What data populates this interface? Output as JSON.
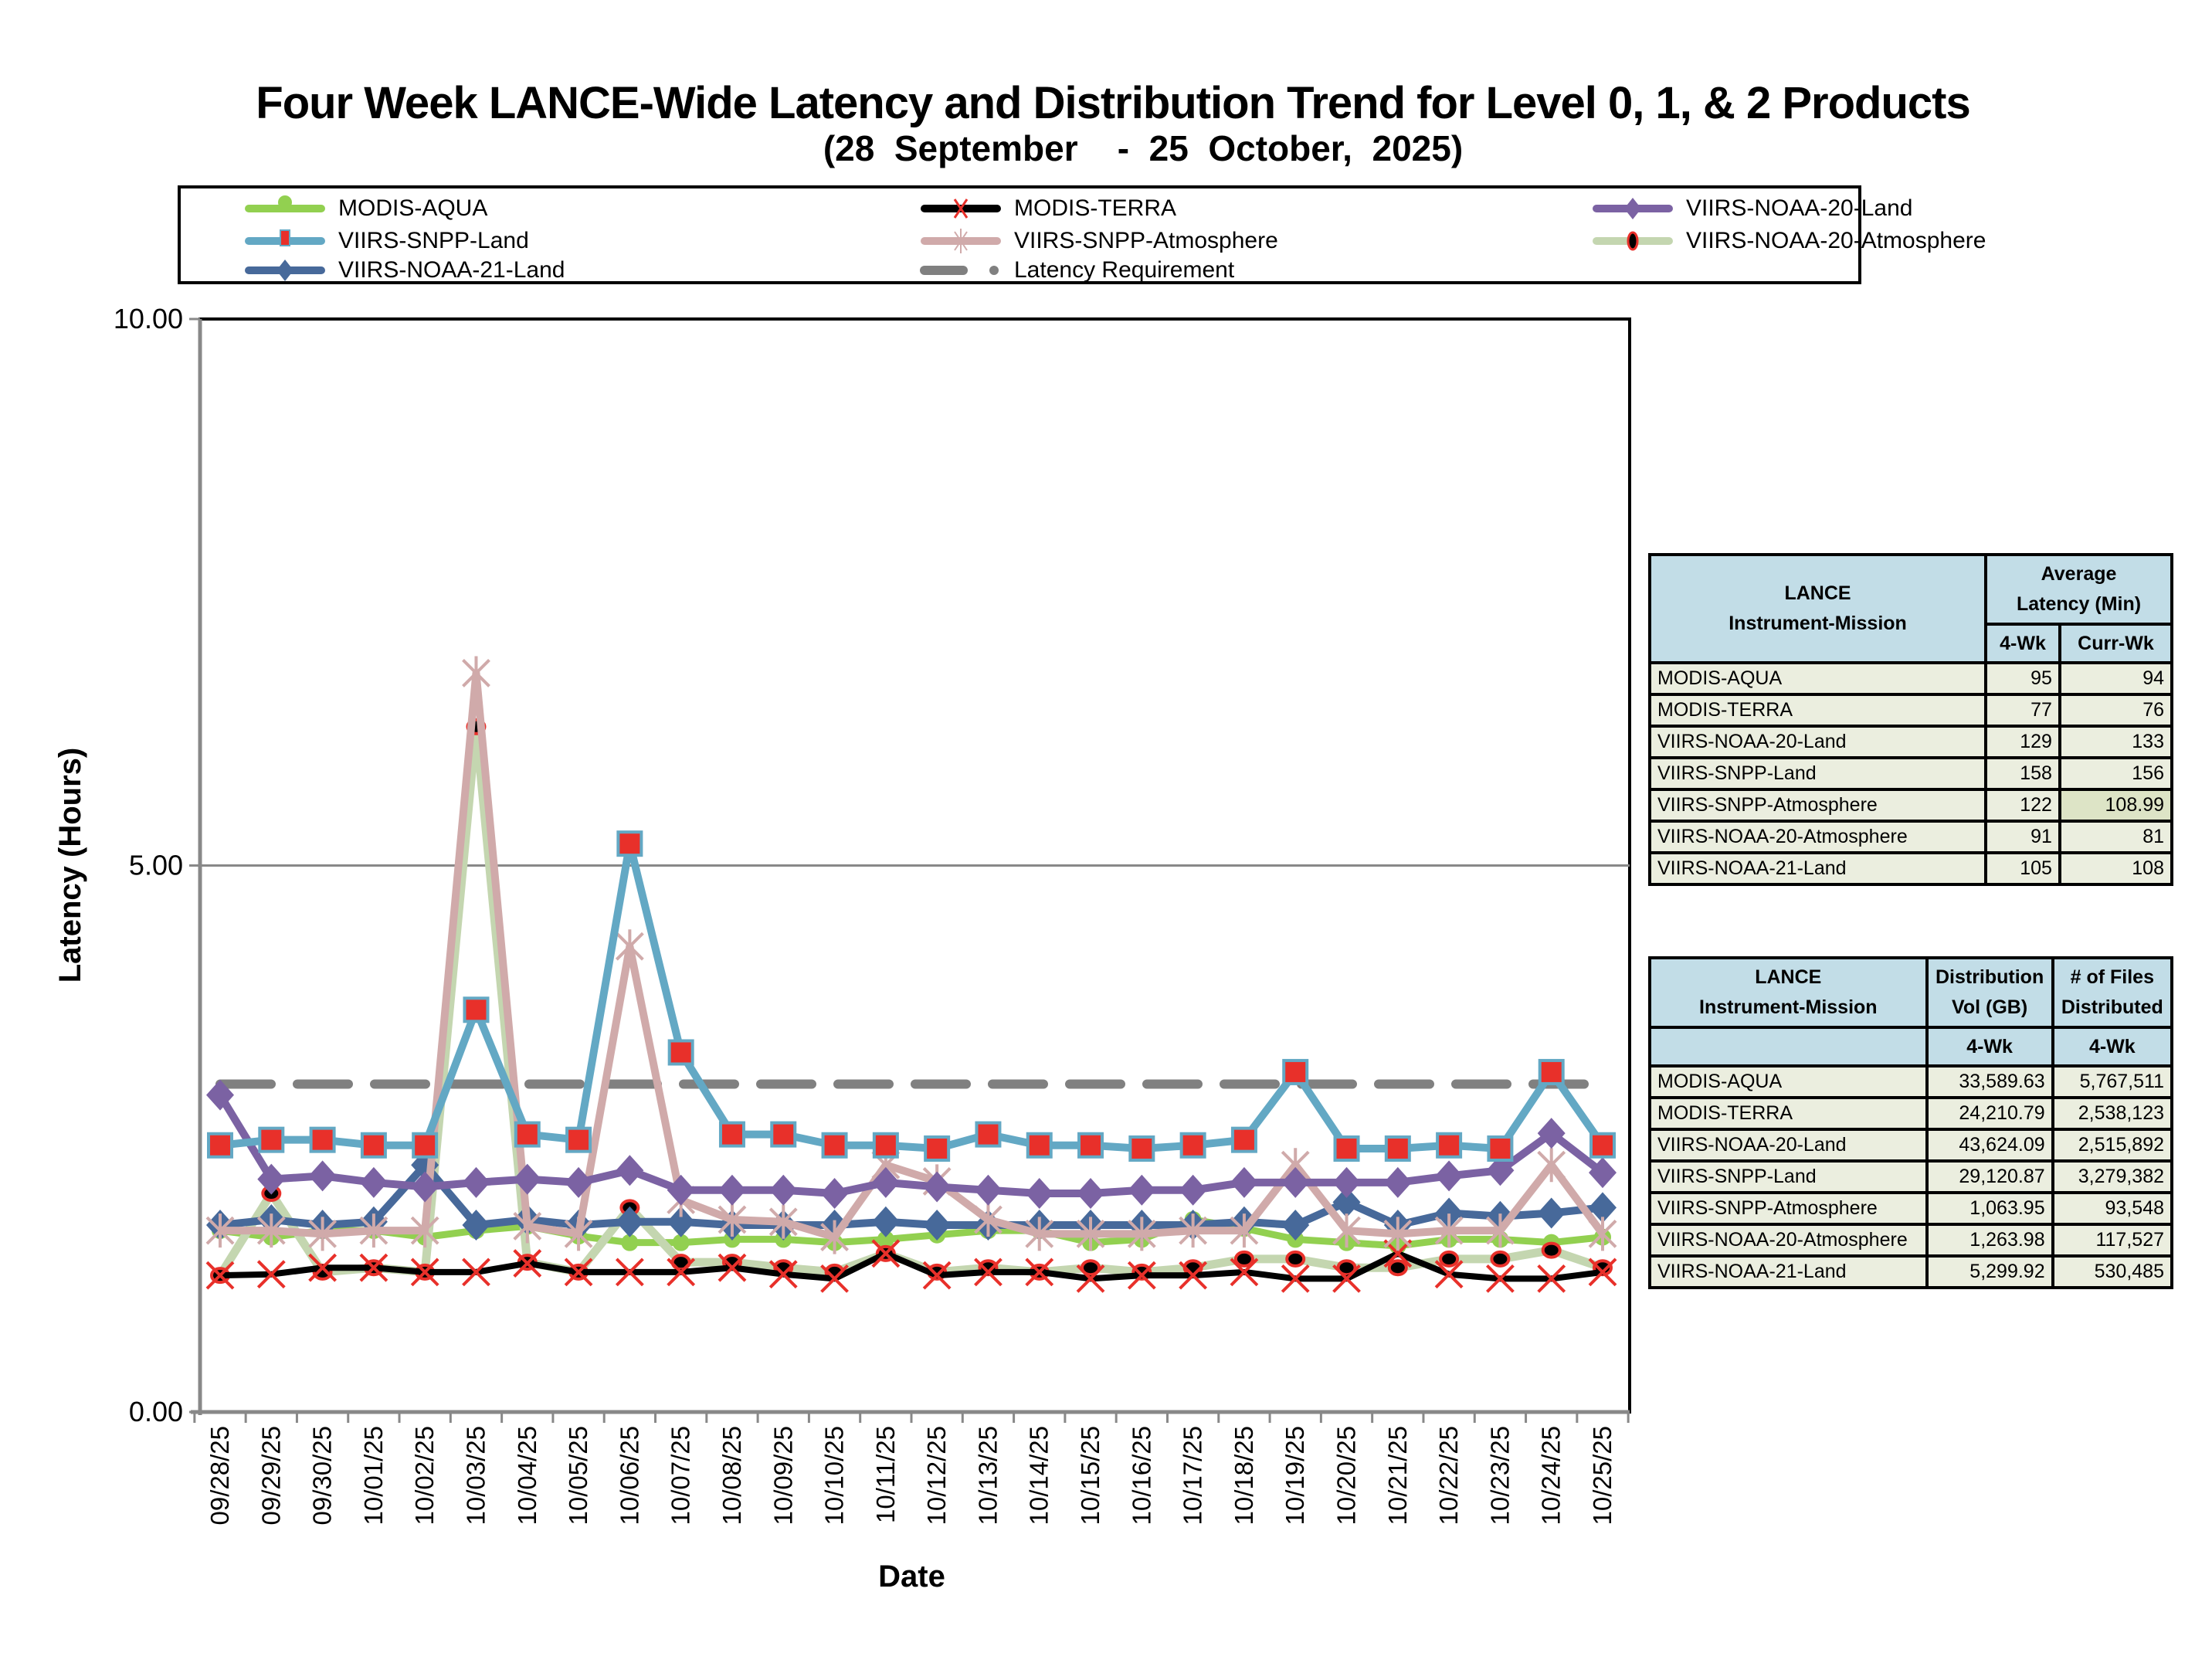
{
  "title": "Four Week LANCE-Wide Latency and Distribution Trend for Level 0, 1, & 2 Products",
  "subtitle": "(28  September    -  25  October,  2025)",
  "chart_data": {
    "type": "line",
    "title": "Four Week LANCE-Wide Latency and Distribution Trend for Level 0, 1, & 2 Products",
    "subtitle": "(28  September    -  25  October,  2025)",
    "xlabel": "Date",
    "ylabel": "Latency (Hours)",
    "ylim": [
      0,
      10
    ],
    "yticks": [
      "0.00",
      "5.00",
      "10.00"
    ],
    "ytick_values": [
      0,
      5,
      10
    ],
    "grid": "horizontal",
    "legend_position": "top",
    "categories": [
      "09/28/25",
      "09/29/25",
      "09/30/25",
      "10/01/25",
      "10/02/25",
      "10/03/25",
      "10/04/25",
      "10/05/25",
      "10/06/25",
      "10/07/25",
      "10/08/25",
      "10/09/25",
      "10/10/25",
      "10/11/25",
      "10/12/25",
      "10/13/25",
      "10/14/25",
      "10/15/25",
      "10/16/25",
      "10/17/25",
      "10/18/25",
      "10/19/25",
      "10/20/25",
      "10/21/25",
      "10/22/25",
      "10/23/25",
      "10/24/25",
      "10/25/25"
    ],
    "series": [
      {
        "name": "MODIS-AQUA",
        "color": "#92d050",
        "marker": "circle",
        "values": [
          1.66,
          1.6,
          1.66,
          1.66,
          1.6,
          1.66,
          1.7,
          1.61,
          1.55,
          1.55,
          1.58,
          1.58,
          1.55,
          1.58,
          1.62,
          1.66,
          1.66,
          1.55,
          1.58,
          1.76,
          1.68,
          1.58,
          1.55,
          1.52,
          1.58,
          1.58,
          1.55,
          1.6
        ]
      },
      {
        "name": "MODIS-TERRA",
        "color": "#000000",
        "marker": "x",
        "values": [
          1.25,
          1.26,
          1.32,
          1.32,
          1.28,
          1.28,
          1.36,
          1.28,
          1.28,
          1.28,
          1.32,
          1.26,
          1.22,
          1.45,
          1.25,
          1.28,
          1.28,
          1.22,
          1.25,
          1.25,
          1.28,
          1.22,
          1.22,
          1.45,
          1.26,
          1.22,
          1.22,
          1.28
        ]
      },
      {
        "name": "VIIRS-NOAA-20-Land",
        "color": "#7b62a3",
        "marker": "diamond",
        "values": [
          2.9,
          2.13,
          2.16,
          2.1,
          2.06,
          2.1,
          2.13,
          2.1,
          2.21,
          2.03,
          2.03,
          2.03,
          2.0,
          2.1,
          2.06,
          2.03,
          2.0,
          2.0,
          2.03,
          2.03,
          2.1,
          2.1,
          2.1,
          2.1,
          2.16,
          2.21,
          2.55,
          2.19
        ]
      },
      {
        "name": "VIIRS-SNPP-Land",
        "color": "#63a8c4",
        "marker": "square",
        "values": [
          2.44,
          2.49,
          2.49,
          2.44,
          2.44,
          3.68,
          2.54,
          2.49,
          5.2,
          3.29,
          2.54,
          2.54,
          2.44,
          2.44,
          2.41,
          2.54,
          2.44,
          2.44,
          2.41,
          2.44,
          2.49,
          3.11,
          2.41,
          2.41,
          2.44,
          2.41,
          3.11,
          2.44
        ]
      },
      {
        "name": "VIIRS-SNPP-Atmosphere",
        "color": "#d0aaaa",
        "marker": "star",
        "values": [
          1.66,
          1.66,
          1.63,
          1.66,
          1.66,
          6.76,
          1.7,
          1.63,
          4.26,
          1.94,
          1.76,
          1.74,
          1.6,
          2.26,
          2.11,
          1.76,
          1.63,
          1.63,
          1.63,
          1.66,
          1.66,
          2.26,
          1.66,
          1.63,
          1.66,
          1.66,
          2.26,
          1.63
        ]
      },
      {
        "name": "VIIRS-NOAA-20-Atmosphere",
        "color": "#c4d6b0",
        "marker": "dot",
        "values": [
          1.25,
          2.0,
          1.28,
          1.32,
          1.28,
          6.27,
          1.37,
          1.28,
          1.87,
          1.37,
          1.37,
          1.32,
          1.28,
          1.45,
          1.28,
          1.32,
          1.28,
          1.32,
          1.28,
          1.32,
          1.4,
          1.4,
          1.32,
          1.32,
          1.4,
          1.4,
          1.48,
          1.32
        ]
      },
      {
        "name": "VIIRS-NOAA-21-Land",
        "color": "#47699a",
        "marker": "diamond",
        "values": [
          1.71,
          1.76,
          1.71,
          1.74,
          2.26,
          1.71,
          1.76,
          1.71,
          1.74,
          1.74,
          1.71,
          1.71,
          1.71,
          1.74,
          1.71,
          1.71,
          1.71,
          1.71,
          1.71,
          1.71,
          1.74,
          1.71,
          1.92,
          1.71,
          1.82,
          1.79,
          1.82,
          1.87
        ]
      },
      {
        "name": "Latency Requirement",
        "color": "#808080",
        "marker": "dash",
        "values": [
          3,
          3,
          3,
          3,
          3,
          3,
          3,
          3,
          3,
          3,
          3,
          3,
          3,
          3,
          3,
          3,
          3,
          3,
          3,
          3,
          3,
          3,
          3,
          3,
          3,
          3,
          3,
          3
        ]
      }
    ]
  },
  "latency_table": {
    "header": {
      "col1_line1": "LANCE",
      "col1_line2": "Instrument-Mission",
      "col2_line1": "Average",
      "col2_line2": "Latency (Min)",
      "sub1": "4-Wk",
      "sub2": "Curr-Wk"
    },
    "rows": [
      {
        "mission": "MODIS-AQUA",
        "four_wk": "95",
        "curr_wk": "94"
      },
      {
        "mission": "MODIS-TERRA",
        "four_wk": "77",
        "curr_wk": "76"
      },
      {
        "mission": "VIIRS-NOAA-20-Land",
        "four_wk": "129",
        "curr_wk": "133"
      },
      {
        "mission": "VIIRS-SNPP-Land",
        "four_wk": "158",
        "curr_wk": "156"
      },
      {
        "mission": "VIIRS-SNPP-Atmosphere",
        "four_wk": "122",
        "curr_wk": "108.99"
      },
      {
        "mission": "VIIRS-NOAA-20-Atmosphere",
        "four_wk": "91",
        "curr_wk": "81"
      },
      {
        "mission": "VIIRS-NOAA-21-Land",
        "four_wk": "105",
        "curr_wk": "108"
      }
    ]
  },
  "distribution_table": {
    "header": {
      "col1_line1": "LANCE",
      "col1_line2": "Instrument-Mission",
      "col2_line1": "Distribution",
      "col2_line2": "Vol (GB)",
      "col3_line1": "# of Files",
      "col3_line2": "Distributed",
      "sub1": "4-Wk",
      "sub2": "4-Wk"
    },
    "rows": [
      {
        "mission": "MODIS-AQUA",
        "vol": "33,589.63",
        "files": "5,767,511"
      },
      {
        "mission": "MODIS-TERRA",
        "vol": "24,210.79",
        "files": "2,538,123"
      },
      {
        "mission": "VIIRS-NOAA-20-Land",
        "vol": "43,624.09",
        "files": "2,515,892"
      },
      {
        "mission": "VIIRS-SNPP-Land",
        "vol": "29,120.87",
        "files": "3,279,382"
      },
      {
        "mission": "VIIRS-SNPP-Atmosphere",
        "vol": "1,063.95",
        "files": "93,548"
      },
      {
        "mission": "VIIRS-NOAA-20-Atmosphere",
        "vol": "1,263.98",
        "files": "117,527"
      },
      {
        "mission": "VIIRS-NOAA-21-Land",
        "vol": "5,299.92",
        "files": "530,485"
      }
    ]
  }
}
